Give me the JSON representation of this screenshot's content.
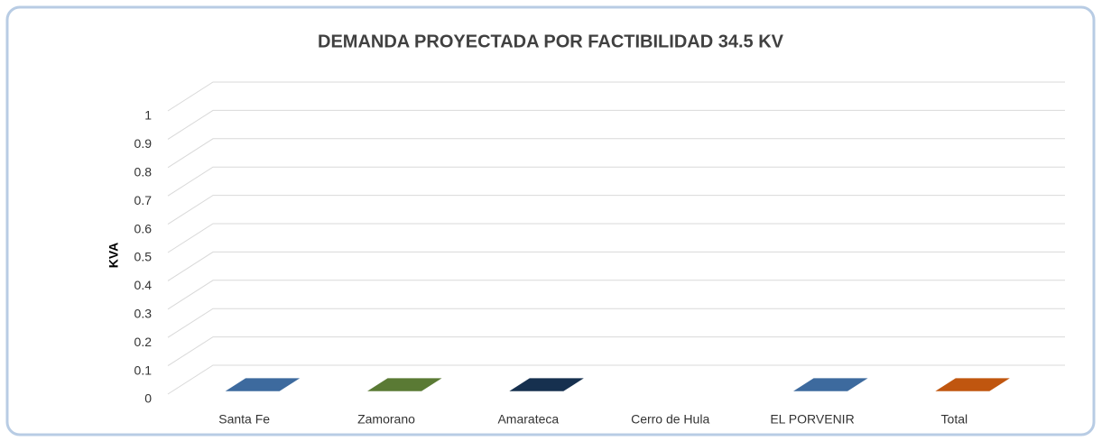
{
  "chart_data": {
    "type": "bar3d",
    "title": "DEMANDA PROYECTADA POR FACTIBILIDAD 34.5 KV",
    "y_label": "KVA",
    "categories": [
      "Santa Fe",
      "Zamorano",
      "Amarateca",
      "Cerro de Hula",
      "EL PORVENIR",
      "Total"
    ],
    "values": [
      0,
      0,
      0,
      null,
      0,
      0
    ],
    "colors": [
      "#3d6a9e",
      "#5a7a34",
      "#16304f",
      "#3d6a9e",
      "#3d6a9e",
      "#c0560f"
    ],
    "ylim": [
      0,
      1
    ],
    "yticks": [
      0,
      0.1,
      0.2,
      0.3,
      0.4,
      0.5,
      0.6,
      0.7,
      0.8,
      0.9,
      1
    ],
    "grid": true
  }
}
